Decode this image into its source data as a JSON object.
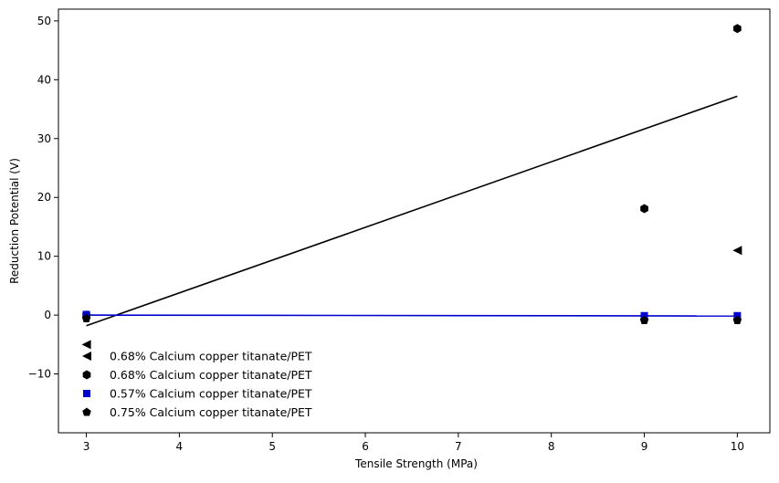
{
  "chart_data": {
    "type": "scatter",
    "title": "",
    "xlabel": "Tensile Strength (MPa)",
    "ylabel": "Reduction Potential (V)",
    "xlim": [
      2.7,
      10.35
    ],
    "ylim": [
      -20,
      52
    ],
    "xticks": [
      3,
      4,
      5,
      6,
      7,
      8,
      9,
      10
    ],
    "yticks": [
      -10,
      0,
      10,
      20,
      30,
      40,
      50
    ],
    "grid": false,
    "legend": "lower-left",
    "series": [
      {
        "name": "0.68% Calcium copper titanate/PET",
        "marker": "triangle-left",
        "color": "#000000",
        "points": [
          [
            3,
            -5.0
          ],
          [
            10,
            11.0
          ]
        ]
      },
      {
        "name": "0.68% Calcium copper titanate/PET",
        "marker": "hexagon",
        "color": "#000000",
        "points": [
          [
            3,
            0.0
          ],
          [
            9,
            18.1
          ],
          [
            10,
            48.7
          ]
        ]
      },
      {
        "name": "0.57% Calcium copper titanate/PET",
        "marker": "square",
        "color": "#0000cc",
        "points": [
          [
            3,
            0.1
          ],
          [
            9,
            -0.1
          ],
          [
            10,
            -0.1
          ]
        ]
      },
      {
        "name": "0.75% Calcium copper titanate/PET",
        "marker": "pentagon",
        "color": "#000000",
        "points": [
          [
            3,
            -0.6
          ],
          [
            9,
            -0.9
          ],
          [
            10,
            -0.9
          ]
        ]
      }
    ],
    "fit_lines": [
      {
        "color": "#000000",
        "points": [
          [
            3,
            -1.8
          ],
          [
            10,
            37.2
          ]
        ]
      },
      {
        "color": "#0000cc",
        "points": [
          [
            3,
            0.0
          ],
          [
            10,
            -0.15
          ]
        ]
      }
    ]
  }
}
